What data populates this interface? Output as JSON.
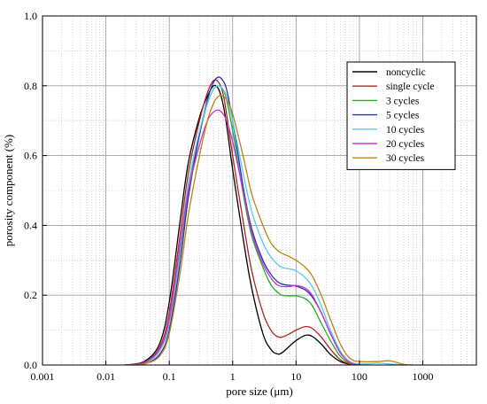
{
  "chart_data": {
    "type": "line",
    "title": "",
    "xlabel": "pore size (μm)",
    "ylabel": "porosity component (%)",
    "x_scale": "log",
    "xlim": [
      0.001,
      7000
    ],
    "ylim": [
      0,
      1.0
    ],
    "x_ticks": [
      0.001,
      0.01,
      0.1,
      1,
      10,
      100,
      1000
    ],
    "x_tick_labels": [
      "0.001",
      "0.01",
      "0.1",
      "1",
      "10",
      "100",
      "1000"
    ],
    "y_ticks": [
      0,
      0.2,
      0.4,
      0.6,
      0.8,
      1.0
    ],
    "y_tick_labels": [
      "0.0",
      "0.2",
      "0.4",
      "0.6",
      "0.8",
      "1.0"
    ],
    "grid": true,
    "legend_position": "top-right",
    "series": [
      {
        "name": "noncyclic",
        "color": "#000000",
        "points": [
          [
            0.02,
            0
          ],
          [
            0.04,
            0.01
          ],
          [
            0.07,
            0.06
          ],
          [
            0.1,
            0.18
          ],
          [
            0.15,
            0.42
          ],
          [
            0.2,
            0.58
          ],
          [
            0.3,
            0.71
          ],
          [
            0.4,
            0.77
          ],
          [
            0.5,
            0.8
          ],
          [
            0.6,
            0.79
          ],
          [
            0.7,
            0.75
          ],
          [
            0.8,
            0.69
          ],
          [
            1,
            0.56
          ],
          [
            1.5,
            0.35
          ],
          [
            2,
            0.22
          ],
          [
            3,
            0.09
          ],
          [
            4,
            0.045
          ],
          [
            5,
            0.032
          ],
          [
            6,
            0.035
          ],
          [
            8,
            0.055
          ],
          [
            10,
            0.07
          ],
          [
            14,
            0.085
          ],
          [
            18,
            0.082
          ],
          [
            25,
            0.06
          ],
          [
            35,
            0.03
          ],
          [
            50,
            0.01
          ],
          [
            70,
            0.002
          ],
          [
            100,
            0
          ]
        ]
      },
      {
        "name": "single cycle",
        "color": "#b22222",
        "points": [
          [
            0.02,
            0
          ],
          [
            0.04,
            0.008
          ],
          [
            0.07,
            0.05
          ],
          [
            0.1,
            0.15
          ],
          [
            0.15,
            0.38
          ],
          [
            0.2,
            0.55
          ],
          [
            0.3,
            0.7
          ],
          [
            0.4,
            0.78
          ],
          [
            0.5,
            0.815
          ],
          [
            0.6,
            0.81
          ],
          [
            0.7,
            0.78
          ],
          [
            0.8,
            0.72
          ],
          [
            1,
            0.6
          ],
          [
            1.5,
            0.4
          ],
          [
            2,
            0.27
          ],
          [
            3,
            0.15
          ],
          [
            4,
            0.1
          ],
          [
            5,
            0.082
          ],
          [
            6,
            0.08
          ],
          [
            8,
            0.09
          ],
          [
            10,
            0.1
          ],
          [
            14,
            0.11
          ],
          [
            18,
            0.105
          ],
          [
            25,
            0.08
          ],
          [
            35,
            0.045
          ],
          [
            50,
            0.015
          ],
          [
            70,
            0.003
          ],
          [
            100,
            0
          ]
        ]
      },
      {
        "name": "3 cycles",
        "color": "#22b022",
        "points": [
          [
            0.02,
            0
          ],
          [
            0.04,
            0.005
          ],
          [
            0.07,
            0.04
          ],
          [
            0.1,
            0.12
          ],
          [
            0.15,
            0.33
          ],
          [
            0.2,
            0.5
          ],
          [
            0.3,
            0.66
          ],
          [
            0.4,
            0.75
          ],
          [
            0.5,
            0.79
          ],
          [
            0.6,
            0.8
          ],
          [
            0.7,
            0.79
          ],
          [
            0.8,
            0.76
          ],
          [
            1,
            0.67
          ],
          [
            1.5,
            0.48
          ],
          [
            2,
            0.37
          ],
          [
            3,
            0.28
          ],
          [
            4,
            0.23
          ],
          [
            5,
            0.21
          ],
          [
            6,
            0.2
          ],
          [
            8,
            0.198
          ],
          [
            10,
            0.198
          ],
          [
            14,
            0.19
          ],
          [
            18,
            0.17
          ],
          [
            25,
            0.12
          ],
          [
            35,
            0.07
          ],
          [
            50,
            0.025
          ],
          [
            70,
            0.005
          ],
          [
            100,
            0
          ]
        ]
      },
      {
        "name": "5 cycles",
        "color": "#2b2bbf",
        "points": [
          [
            0.02,
            0
          ],
          [
            0.04,
            0.003
          ],
          [
            0.07,
            0.03
          ],
          [
            0.1,
            0.1
          ],
          [
            0.15,
            0.3
          ],
          [
            0.2,
            0.48
          ],
          [
            0.3,
            0.66
          ],
          [
            0.4,
            0.76
          ],
          [
            0.5,
            0.81
          ],
          [
            0.6,
            0.825
          ],
          [
            0.7,
            0.815
          ],
          [
            0.8,
            0.79
          ],
          [
            1,
            0.7
          ],
          [
            1.5,
            0.5
          ],
          [
            2,
            0.39
          ],
          [
            3,
            0.3
          ],
          [
            4,
            0.26
          ],
          [
            5,
            0.24
          ],
          [
            6,
            0.232
          ],
          [
            8,
            0.228
          ],
          [
            10,
            0.226
          ],
          [
            14,
            0.215
          ],
          [
            18,
            0.195
          ],
          [
            25,
            0.15
          ],
          [
            35,
            0.09
          ],
          [
            50,
            0.035
          ],
          [
            70,
            0.008
          ],
          [
            100,
            0
          ]
        ]
      },
      {
        "name": "10 cycles",
        "color": "#55ccee",
        "points": [
          [
            0.02,
            0
          ],
          [
            0.04,
            0.004
          ],
          [
            0.07,
            0.04
          ],
          [
            0.1,
            0.12
          ],
          [
            0.15,
            0.34
          ],
          [
            0.2,
            0.52
          ],
          [
            0.3,
            0.67
          ],
          [
            0.4,
            0.75
          ],
          [
            0.5,
            0.79
          ],
          [
            0.6,
            0.8
          ],
          [
            0.7,
            0.79
          ],
          [
            0.8,
            0.77
          ],
          [
            1,
            0.7
          ],
          [
            1.5,
            0.54
          ],
          [
            2,
            0.44
          ],
          [
            3,
            0.35
          ],
          [
            4,
            0.31
          ],
          [
            5,
            0.29
          ],
          [
            6,
            0.28
          ],
          [
            8,
            0.275
          ],
          [
            10,
            0.27
          ],
          [
            14,
            0.25
          ],
          [
            18,
            0.225
          ],
          [
            25,
            0.17
          ],
          [
            35,
            0.1
          ],
          [
            50,
            0.04
          ],
          [
            70,
            0.01
          ],
          [
            100,
            0.003
          ],
          [
            200,
            0.005
          ],
          [
            300,
            0.003
          ],
          [
            500,
            0
          ]
        ]
      },
      {
        "name": "20 cycles",
        "color": "#cc33cc",
        "points": [
          [
            0.02,
            0
          ],
          [
            0.04,
            0.006
          ],
          [
            0.07,
            0.045
          ],
          [
            0.1,
            0.13
          ],
          [
            0.15,
            0.35
          ],
          [
            0.2,
            0.5
          ],
          [
            0.3,
            0.63
          ],
          [
            0.4,
            0.7
          ],
          [
            0.5,
            0.725
          ],
          [
            0.6,
            0.73
          ],
          [
            0.7,
            0.72
          ],
          [
            0.8,
            0.7
          ],
          [
            1,
            0.64
          ],
          [
            1.5,
            0.49
          ],
          [
            2,
            0.38
          ],
          [
            3,
            0.29
          ],
          [
            4,
            0.25
          ],
          [
            5,
            0.23
          ],
          [
            6,
            0.225
          ],
          [
            8,
            0.225
          ],
          [
            10,
            0.228
          ],
          [
            14,
            0.22
          ],
          [
            18,
            0.2
          ],
          [
            25,
            0.15
          ],
          [
            35,
            0.09
          ],
          [
            50,
            0.035
          ],
          [
            70,
            0.008
          ],
          [
            100,
            0
          ]
        ]
      },
      {
        "name": "30 cycles",
        "color": "#b8860b",
        "points": [
          [
            0.02,
            0
          ],
          [
            0.04,
            0.003
          ],
          [
            0.07,
            0.025
          ],
          [
            0.1,
            0.09
          ],
          [
            0.15,
            0.27
          ],
          [
            0.2,
            0.43
          ],
          [
            0.3,
            0.6
          ],
          [
            0.4,
            0.7
          ],
          [
            0.5,
            0.75
          ],
          [
            0.6,
            0.77
          ],
          [
            0.7,
            0.77
          ],
          [
            0.8,
            0.76
          ],
          [
            1,
            0.72
          ],
          [
            1.5,
            0.59
          ],
          [
            2,
            0.49
          ],
          [
            3,
            0.4
          ],
          [
            4,
            0.35
          ],
          [
            5,
            0.33
          ],
          [
            6,
            0.32
          ],
          [
            8,
            0.31
          ],
          [
            10,
            0.3
          ],
          [
            14,
            0.28
          ],
          [
            18,
            0.255
          ],
          [
            25,
            0.2
          ],
          [
            35,
            0.13
          ],
          [
            50,
            0.06
          ],
          [
            70,
            0.02
          ],
          [
            100,
            0.01
          ],
          [
            200,
            0.01
          ],
          [
            300,
            0.012
          ],
          [
            500,
            0.002
          ],
          [
            700,
            0
          ]
        ]
      }
    ]
  }
}
